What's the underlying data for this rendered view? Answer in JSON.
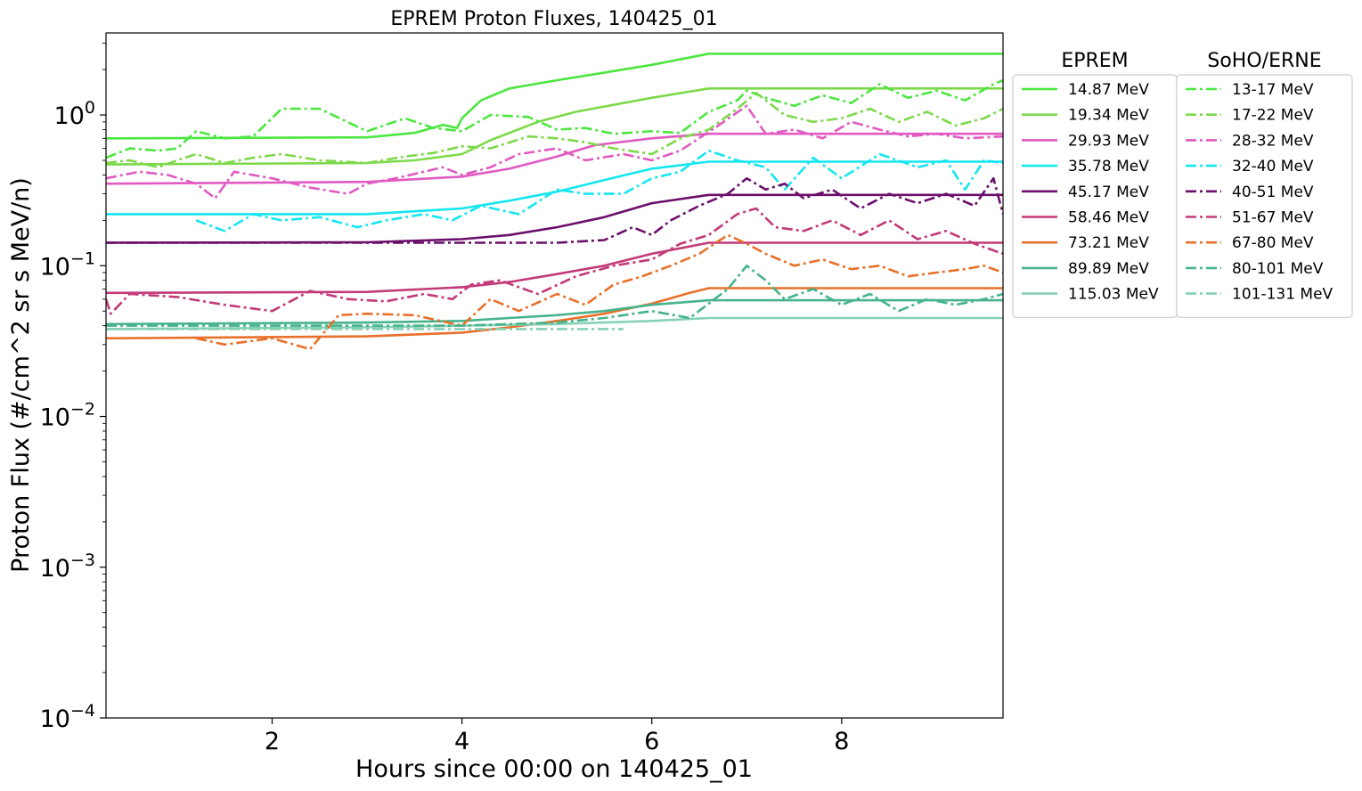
{
  "chart_data": {
    "type": "line",
    "title": "EPREM Proton Fluxes, 140425_01",
    "xlabel": "Hours since 00:00 on 140425_01",
    "ylabel": "Proton Flux (#/cm^2 sr s MeV/n)",
    "xlim": [
      0.25,
      9.7
    ],
    "ylim": [
      0.0001,
      3.5
    ],
    "yscale": "log",
    "xticks": [
      2,
      4,
      6,
      8
    ],
    "xtick_labels": [
      "2",
      "4",
      "6",
      "8"
    ],
    "yticks": [
      1,
      0.1,
      0.01,
      0.001,
      0.0001
    ],
    "ytick_labels": [
      {
        "base": "10",
        "exp": "0"
      },
      {
        "base": "10",
        "exp": "−1"
      },
      {
        "base": "10",
        "exp": "−2"
      },
      {
        "base": "10",
        "exp": "−3"
      },
      {
        "base": "10",
        "exp": "−4"
      }
    ],
    "legend_placement": "outside-right",
    "legends": [
      {
        "title": "EPREM",
        "style": "solid",
        "entries": [
          "14.87 MeV",
          "19.34 MeV",
          "29.93 MeV",
          "35.78 MeV",
          "45.17 MeV",
          "58.46 MeV",
          "73.21 MeV",
          "89.89 MeV",
          "115.03 MeV"
        ]
      },
      {
        "title": "SoHO/ERNE",
        "style": "dashdot",
        "entries": [
          "13-17 MeV",
          "17-22 MeV",
          "28-32 MeV",
          "32-40 MeV",
          "40-51 MeV",
          "51-67 MeV",
          "67-80 MeV",
          "80-101 MeV",
          "101-131 MeV"
        ]
      }
    ],
    "colors": [
      "#4ce640",
      "#7dd94a",
      "#e05ac2",
      "#15e6f0",
      "#6b0f6b",
      "#c23a78",
      "#e8702a",
      "#46b38c",
      "#85d1b3"
    ],
    "series": [
      {
        "name": "14.87 MeV",
        "style": "solid",
        "x": [
          0.25,
          3.0,
          3.5,
          3.8,
          3.95,
          4.0,
          4.2,
          4.5,
          5.0,
          6.0,
          6.6,
          9.7
        ],
        "y": [
          0.7,
          0.71,
          0.76,
          0.86,
          0.82,
          0.95,
          1.25,
          1.5,
          1.7,
          2.15,
          2.55,
          2.55
        ]
      },
      {
        "name": "19.34 MeV",
        "style": "solid",
        "x": [
          0.25,
          3.0,
          3.5,
          4.0,
          4.3,
          4.8,
          5.2,
          6.0,
          6.6,
          9.7
        ],
        "y": [
          0.47,
          0.48,
          0.5,
          0.55,
          0.68,
          0.9,
          1.05,
          1.3,
          1.5,
          1.5
        ]
      },
      {
        "name": "29.93 MeV",
        "style": "solid",
        "x": [
          0.25,
          3.0,
          4.0,
          4.5,
          5.0,
          5.4,
          6.0,
          6.6,
          9.7
        ],
        "y": [
          0.35,
          0.36,
          0.39,
          0.44,
          0.53,
          0.63,
          0.7,
          0.75,
          0.75
        ]
      },
      {
        "name": "35.78 MeV",
        "style": "solid",
        "x": [
          0.25,
          3.0,
          4.0,
          4.5,
          5.0,
          5.5,
          6.0,
          6.6,
          9.7
        ],
        "y": [
          0.22,
          0.22,
          0.24,
          0.27,
          0.31,
          0.37,
          0.44,
          0.49,
          0.49
        ]
      },
      {
        "name": "45.17 MeV",
        "style": "solid",
        "x": [
          0.25,
          3.0,
          4.0,
          4.5,
          5.0,
          5.5,
          6.0,
          6.6,
          9.7
        ],
        "y": [
          0.142,
          0.143,
          0.15,
          0.16,
          0.18,
          0.21,
          0.26,
          0.295,
          0.295
        ]
      },
      {
        "name": "58.46 MeV",
        "style": "solid",
        "x": [
          0.25,
          3.0,
          4.0,
          4.5,
          5.0,
          5.5,
          6.0,
          6.6,
          9.7
        ],
        "y": [
          0.066,
          0.067,
          0.072,
          0.078,
          0.088,
          0.1,
          0.12,
          0.142,
          0.142
        ]
      },
      {
        "name": "73.21 MeV",
        "style": "solid",
        "x": [
          0.25,
          3.0,
          4.0,
          4.5,
          5.0,
          5.5,
          6.0,
          6.4,
          6.6,
          9.7
        ],
        "y": [
          0.033,
          0.034,
          0.036,
          0.039,
          0.043,
          0.048,
          0.056,
          0.066,
          0.071,
          0.071
        ]
      },
      {
        "name": "89.89 MeV",
        "style": "solid",
        "x": [
          0.25,
          3.0,
          4.0,
          4.5,
          5.0,
          5.5,
          6.0,
          6.6,
          9.7
        ],
        "y": [
          0.041,
          0.042,
          0.043,
          0.045,
          0.047,
          0.05,
          0.055,
          0.059,
          0.059
        ]
      },
      {
        "name": "115.03 MeV",
        "style": "solid",
        "x": [
          0.25,
          3.0,
          4.0,
          5.0,
          6.0,
          6.6,
          9.7
        ],
        "y": [
          0.038,
          0.039,
          0.04,
          0.041,
          0.043,
          0.045,
          0.045
        ]
      },
      {
        "name": "13-17 MeV",
        "style": "dashdot",
        "x": [
          0.25,
          0.5,
          0.8,
          1.0,
          1.2,
          1.5,
          1.8,
          2.1,
          2.5,
          3.0,
          3.4,
          3.7,
          4.0,
          4.3,
          4.7,
          5.0,
          5.3,
          5.6,
          6.0,
          6.3,
          6.6,
          6.9,
          7.0,
          7.2,
          7.5,
          7.8,
          8.1,
          8.4,
          8.7,
          9.0,
          9.3,
          9.6,
          9.7
        ],
        "y": [
          0.52,
          0.6,
          0.58,
          0.6,
          0.78,
          0.7,
          0.72,
          1.1,
          1.1,
          0.78,
          0.95,
          0.82,
          0.78,
          1.0,
          0.97,
          0.8,
          0.82,
          0.75,
          0.78,
          0.76,
          1.05,
          1.25,
          1.45,
          1.3,
          1.15,
          1.35,
          1.2,
          1.6,
          1.3,
          1.45,
          1.25,
          1.6,
          1.7
        ]
      },
      {
        "name": "17-22 MeV",
        "style": "dashdot",
        "x": [
          0.25,
          0.5,
          0.8,
          1.0,
          1.2,
          1.5,
          1.8,
          2.1,
          2.5,
          3.0,
          3.4,
          3.7,
          4.0,
          4.3,
          4.7,
          5.0,
          5.3,
          5.6,
          6.0,
          6.3,
          6.6,
          6.9,
          7.1,
          7.4,
          7.7,
          8.0,
          8.3,
          8.6,
          8.9,
          9.2,
          9.5,
          9.7
        ],
        "y": [
          0.48,
          0.5,
          0.45,
          0.5,
          0.55,
          0.48,
          0.52,
          0.55,
          0.5,
          0.48,
          0.53,
          0.56,
          0.62,
          0.6,
          0.72,
          0.7,
          0.66,
          0.6,
          0.55,
          0.7,
          0.8,
          1.1,
          1.4,
          1.0,
          0.9,
          0.95,
          1.1,
          0.9,
          1.05,
          0.85,
          0.95,
          1.1
        ]
      },
      {
        "name": "28-32 MeV",
        "style": "dashdot",
        "x": [
          0.25,
          0.6,
          0.9,
          1.2,
          1.4,
          1.6,
          2.0,
          2.4,
          2.8,
          3.0,
          3.3,
          3.6,
          3.8,
          4.0,
          4.3,
          4.6,
          5.0,
          5.3,
          5.7,
          6.0,
          6.3,
          6.7,
          7.0,
          7.2,
          7.5,
          7.8,
          8.1,
          8.4,
          8.7,
          9.0,
          9.3,
          9.7
        ],
        "y": [
          0.38,
          0.42,
          0.4,
          0.35,
          0.28,
          0.42,
          0.38,
          0.33,
          0.3,
          0.35,
          0.38,
          0.42,
          0.45,
          0.4,
          0.45,
          0.55,
          0.6,
          0.5,
          0.55,
          0.5,
          0.58,
          0.85,
          1.15,
          0.75,
          0.8,
          0.7,
          0.9,
          0.8,
          0.72,
          0.75,
          0.7,
          0.72
        ]
      },
      {
        "name": "32-40 MeV",
        "style": "dashdot",
        "x": [
          1.2,
          1.5,
          1.8,
          2.1,
          2.5,
          2.9,
          3.2,
          3.6,
          3.9,
          4.2,
          4.6,
          5.0,
          5.3,
          5.7,
          6.0,
          6.3,
          6.6,
          6.9,
          7.2,
          7.4,
          7.7,
          8.0,
          8.4,
          8.8,
          9.1,
          9.3,
          9.5,
          9.7
        ],
        "y": [
          0.2,
          0.17,
          0.22,
          0.2,
          0.21,
          0.18,
          0.2,
          0.22,
          0.2,
          0.25,
          0.22,
          0.32,
          0.3,
          0.3,
          0.38,
          0.42,
          0.58,
          0.5,
          0.45,
          0.32,
          0.52,
          0.38,
          0.55,
          0.45,
          0.5,
          0.32,
          0.5,
          0.48
        ]
      },
      {
        "name": "40-51 MeV",
        "style": "dashdot",
        "x": [
          0.25,
          1.0,
          2.0,
          3.0,
          4.0,
          5.0,
          5.5,
          5.8,
          6.0,
          6.2,
          6.5,
          6.8,
          7.0,
          7.2,
          7.4,
          7.6,
          7.9,
          8.2,
          8.5,
          8.8,
          9.1,
          9.4,
          9.6,
          9.7
        ],
        "y": [
          0.142,
          0.142,
          0.142,
          0.142,
          0.142,
          0.142,
          0.148,
          0.18,
          0.16,
          0.2,
          0.25,
          0.3,
          0.38,
          0.32,
          0.35,
          0.28,
          0.32,
          0.24,
          0.3,
          0.26,
          0.3,
          0.25,
          0.38,
          0.22
        ]
      },
      {
        "name": "51-67 MeV",
        "style": "dashdot",
        "x": [
          0.25,
          0.3,
          0.5,
          1.0,
          1.5,
          2.0,
          2.4,
          2.8,
          3.2,
          3.6,
          3.9,
          4.1,
          4.4,
          4.8,
          5.2,
          5.6,
          6.0,
          6.3,
          6.6,
          6.9,
          7.1,
          7.3,
          7.6,
          7.9,
          8.2,
          8.5,
          8.8,
          9.1,
          9.4,
          9.7
        ],
        "y": [
          0.06,
          0.048,
          0.065,
          0.062,
          0.055,
          0.05,
          0.068,
          0.06,
          0.058,
          0.065,
          0.06,
          0.075,
          0.08,
          0.065,
          0.085,
          0.1,
          0.11,
          0.14,
          0.16,
          0.22,
          0.24,
          0.18,
          0.17,
          0.2,
          0.16,
          0.2,
          0.15,
          0.17,
          0.14,
          0.12
        ]
      },
      {
        "name": "67-80 MeV",
        "style": "dashdot",
        "x": [
          1.2,
          1.5,
          2.0,
          2.4,
          2.7,
          3.0,
          3.5,
          4.0,
          4.3,
          4.6,
          5.0,
          5.3,
          5.6,
          5.9,
          6.2,
          6.5,
          6.8,
          7.0,
          7.2,
          7.5,
          7.8,
          8.1,
          8.4,
          8.7,
          9.0,
          9.3,
          9.5,
          9.7
        ],
        "y": [
          0.033,
          0.03,
          0.033,
          0.028,
          0.047,
          0.048,
          0.047,
          0.04,
          0.06,
          0.05,
          0.065,
          0.055,
          0.075,
          0.085,
          0.1,
          0.12,
          0.16,
          0.14,
          0.12,
          0.1,
          0.11,
          0.095,
          0.1,
          0.085,
          0.09,
          0.095,
          0.1,
          0.09
        ]
      },
      {
        "name": "80-101 MeV",
        "style": "dashdot",
        "x": [
          0.25,
          1.0,
          2.0,
          3.0,
          4.0,
          5.0,
          5.5,
          6.0,
          6.4,
          6.8,
          7.0,
          7.2,
          7.4,
          7.7,
          8.0,
          8.3,
          8.6,
          8.9,
          9.2,
          9.5,
          9.7
        ],
        "y": [
          0.04,
          0.04,
          0.04,
          0.04,
          0.04,
          0.042,
          0.045,
          0.05,
          0.045,
          0.07,
          0.1,
          0.08,
          0.06,
          0.07,
          0.055,
          0.065,
          0.05,
          0.06,
          0.055,
          0.06,
          0.065
        ]
      },
      {
        "name": "101-131 MeV",
        "style": "dashdot",
        "x": [
          0.25,
          1.0,
          2.0,
          3.0,
          4.0,
          5.0,
          5.7
        ],
        "y": [
          0.038,
          0.038,
          0.038,
          0.038,
          0.038,
          0.038,
          0.038
        ]
      }
    ]
  }
}
